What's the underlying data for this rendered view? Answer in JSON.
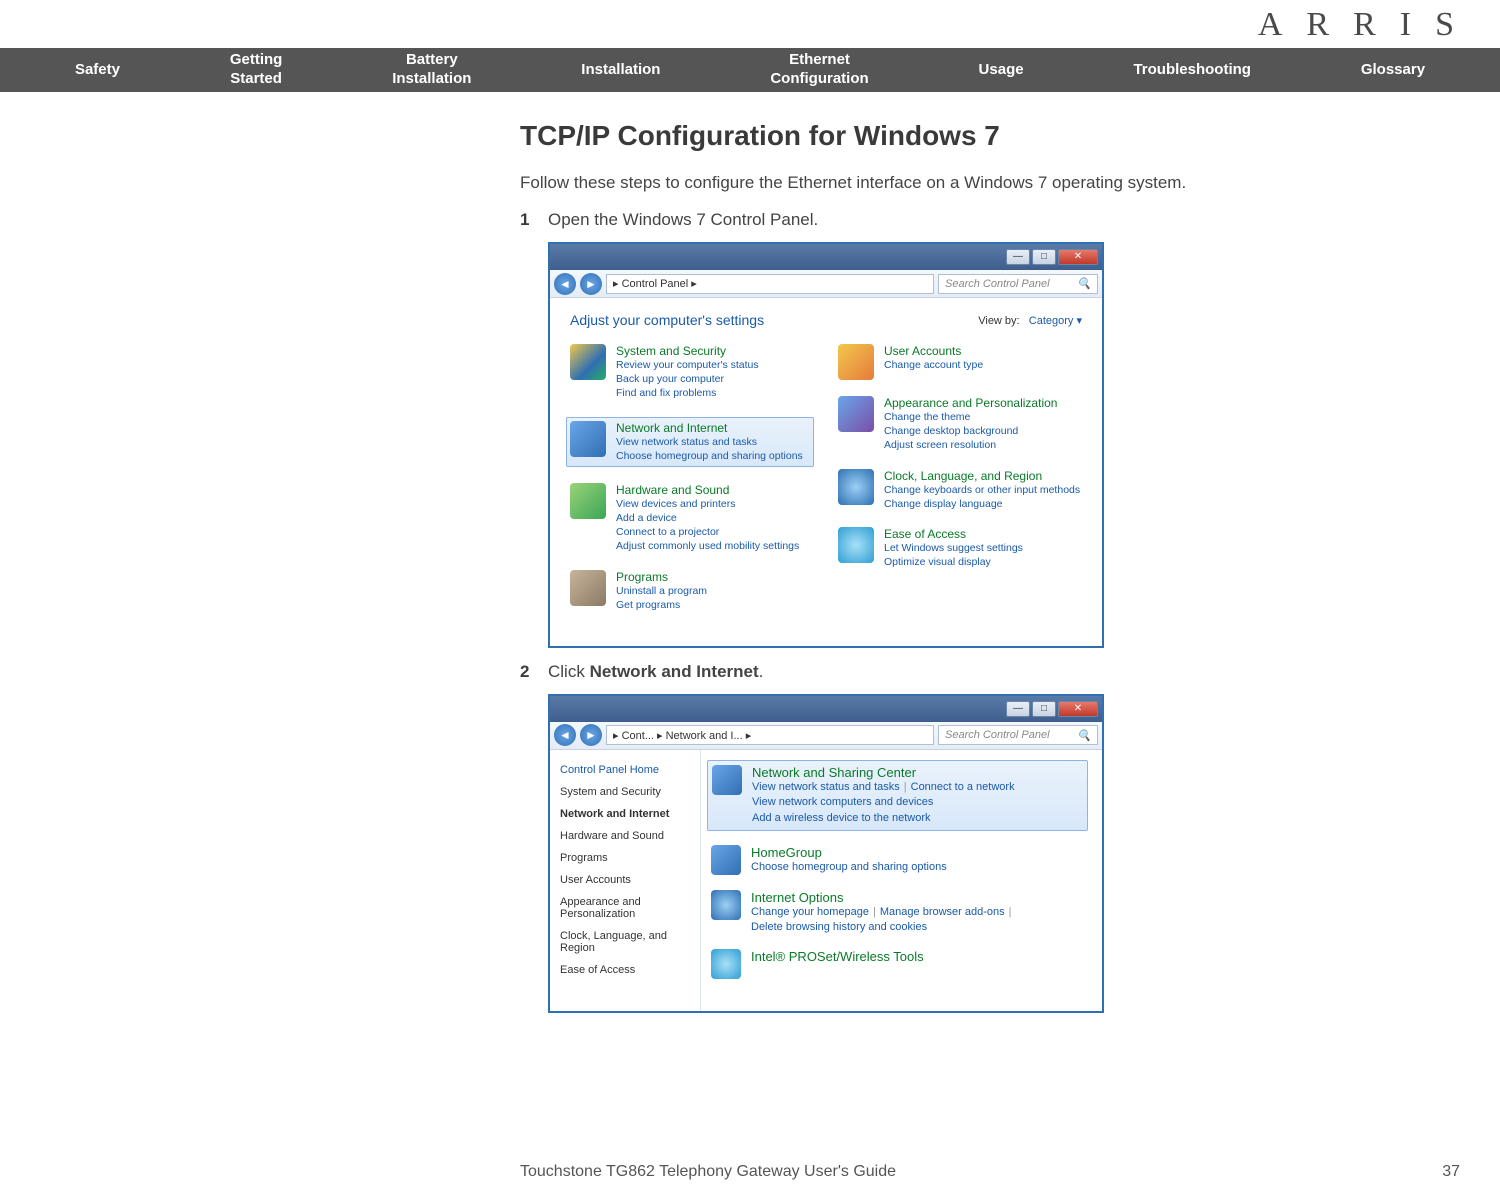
{
  "logo": "ARRIS",
  "nav": [
    "Safety",
    "Getting\nStarted",
    "Battery\nInstallation",
    "Installation",
    "Ethernet\nConfiguration",
    "Usage",
    "Troubleshooting",
    "Glossary"
  ],
  "title": "TCP/IP Configuration for Windows 7",
  "intro": "Follow these steps to configure the Ethernet interface on a Windows 7 operating system.",
  "step1_num": "1",
  "step1_text": "Open the Windows 7 Control Panel.",
  "step2_num": "2",
  "step2_prefix": "Click ",
  "step2_bold": "Network and Internet",
  "step2_suffix": ".",
  "cp1": {
    "breadcrumb": "▸ Control Panel ▸",
    "search_placeholder": "Search Control Panel",
    "adjust": "Adjust your computer's settings",
    "viewby_label": "View by:",
    "viewby_value": "Category ▾",
    "left": [
      {
        "title": "System and Security",
        "subs": [
          "Review your computer's status",
          "Back up your computer",
          "Find and fix problems"
        ],
        "icon_bg": "linear-gradient(135deg,#f2c94c,#2f6fb2 60%,#27ae60)"
      },
      {
        "title": "Network and Internet",
        "subs": [
          "View network status and tasks",
          "Choose homegroup and sharing options"
        ],
        "icon_bg": "linear-gradient(135deg,#6aa6e8,#2f6fb2)",
        "selected": true
      },
      {
        "title": "Hardware and Sound",
        "subs": [
          "View devices and printers",
          "Add a device",
          "Connect to a projector",
          "Adjust commonly used mobility settings"
        ],
        "icon_bg": "linear-gradient(135deg,#9bd27a,#3aa655)"
      },
      {
        "title": "Programs",
        "subs": [
          "Uninstall a program",
          "Get programs"
        ],
        "icon_bg": "linear-gradient(135deg,#c8b49c,#8a7a64)"
      }
    ],
    "right": [
      {
        "title": "User Accounts",
        "subs": [
          "Change account type"
        ],
        "icon_bg": "linear-gradient(135deg,#f2c94c,#e67a3c)"
      },
      {
        "title": "Appearance and Personalization",
        "subs": [
          "Change the theme",
          "Change desktop background",
          "Adjust screen resolution"
        ],
        "icon_bg": "linear-gradient(135deg,#6aa6e8,#7a4ea8)"
      },
      {
        "title": "Clock, Language, and Region",
        "subs": [
          "Change keyboards or other input methods",
          "Change display language"
        ],
        "icon_bg": "radial-gradient(#9ad0f5,#2f6fb2)"
      },
      {
        "title": "Ease of Access",
        "subs": [
          "Let Windows suggest settings",
          "Optimize visual display"
        ],
        "icon_bg": "radial-gradient(#a8e0f8,#2f9fd2)"
      }
    ]
  },
  "cp2": {
    "breadcrumb": "▸ Cont... ▸ Network and I... ▸",
    "search_placeholder": "Search Control Panel",
    "side_header": "Control Panel Home",
    "side_items": [
      {
        "label": "System and Security"
      },
      {
        "label": "Network and Internet",
        "bold": true
      },
      {
        "label": "Hardware and Sound"
      },
      {
        "label": "Programs"
      },
      {
        "label": "User Accounts"
      },
      {
        "label": "Appearance and Personalization"
      },
      {
        "label": "Clock, Language, and Region"
      },
      {
        "label": "Ease of Access"
      }
    ],
    "groups": [
      {
        "title": "Network and Sharing Center",
        "subs": [
          "View network status and tasks",
          "Connect to a network",
          "View network computers and devices",
          "Add a wireless device to the network"
        ],
        "icon_bg": "linear-gradient(135deg,#6aa6e8,#2f6fb2)",
        "selected": true
      },
      {
        "title": "HomeGroup",
        "subs": [
          "Choose homegroup and sharing options"
        ],
        "icon_bg": "linear-gradient(135deg,#6aa6e8,#2f6fb2)"
      },
      {
        "title": "Internet Options",
        "subs": [
          "Change your homepage",
          "Manage browser add-ons",
          "Delete browsing history and cookies"
        ],
        "icon_bg": "radial-gradient(#9ad0f5,#2f6fb2)"
      },
      {
        "title": "Intel® PROSet/Wireless Tools",
        "subs": [],
        "icon_bg": "radial-gradient(#a8e0f8,#2f9fd2)"
      }
    ]
  },
  "footer_title": "Touchstone TG862 Telephony Gateway User's Guide",
  "footer_page": "37"
}
